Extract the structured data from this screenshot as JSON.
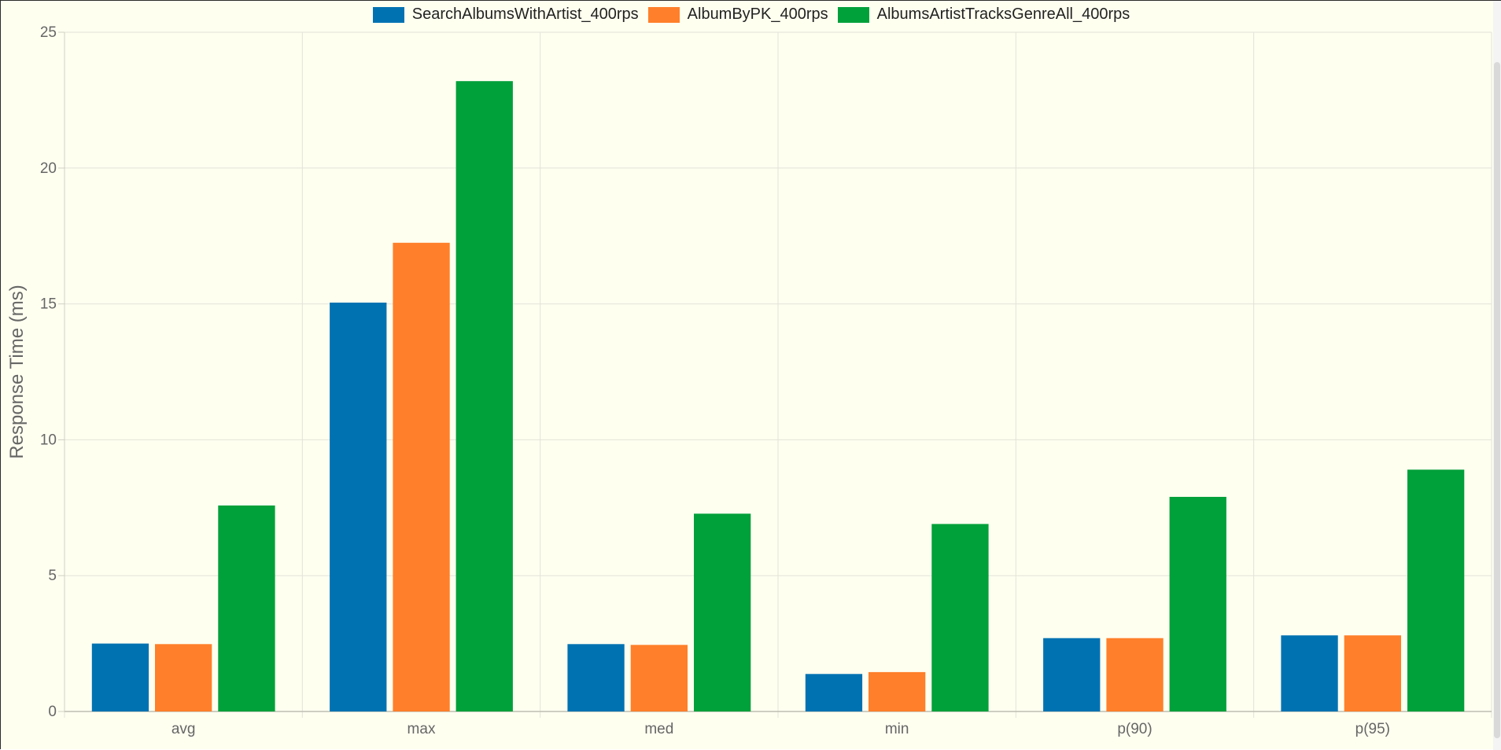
{
  "chart_data": {
    "type": "bar",
    "title": "",
    "xlabel": "",
    "ylabel": "Response Time (ms)",
    "categories": [
      "avg",
      "max",
      "med",
      "min",
      "p(90)",
      "p(95)"
    ],
    "ylim": [
      0,
      25
    ],
    "yticks": [
      0,
      5,
      10,
      15,
      20,
      25
    ],
    "grid": true,
    "legend_position": "top-center",
    "series": [
      {
        "name": "SearchAlbumsWithArtist_400rps",
        "color": "#0072b2",
        "values": [
          2.5,
          15.05,
          2.48,
          1.38,
          2.7,
          2.8
        ]
      },
      {
        "name": "AlbumByPK_400rps",
        "color": "#ff7f2a",
        "values": [
          2.48,
          17.25,
          2.45,
          1.45,
          2.7,
          2.8
        ]
      },
      {
        "name": "AlbumsArtistTracksGenreAll_400rps",
        "color": "#00a03a",
        "values": [
          7.58,
          23.2,
          7.28,
          6.9,
          7.9,
          8.9
        ]
      }
    ]
  }
}
